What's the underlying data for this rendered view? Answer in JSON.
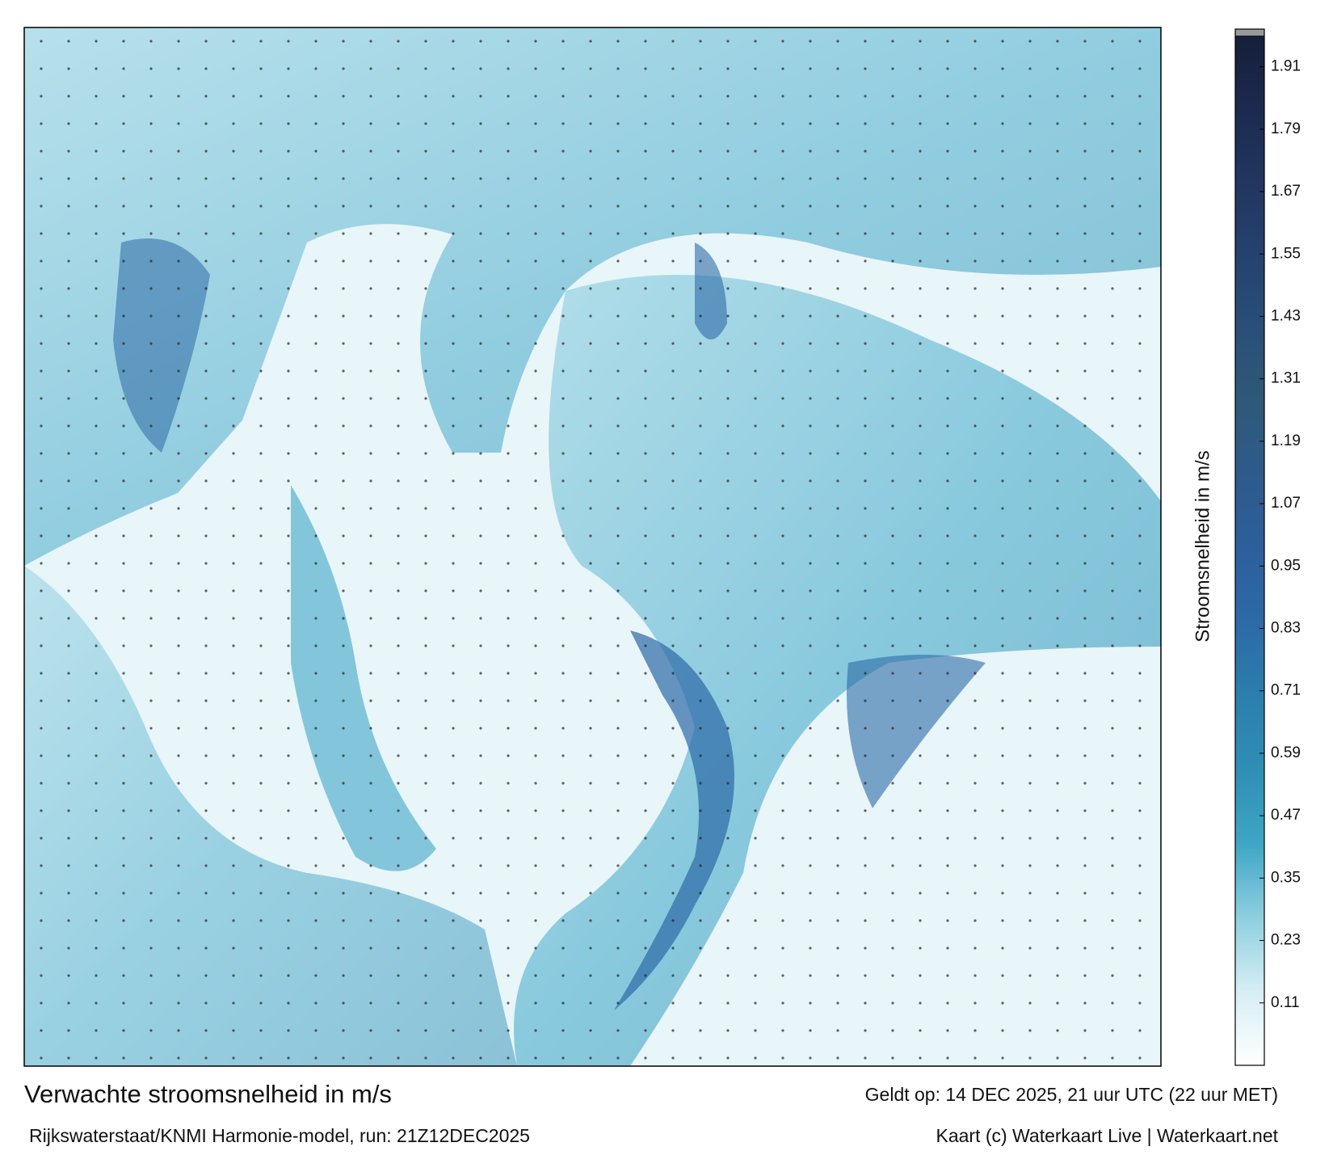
{
  "map": {
    "title": "Verwachte stroomsnelheid in m/s",
    "subtitle": "Rijkswaterstaat/KNMI Harmonie-model, run: 21Z12DEC2025",
    "valid": "Geldt op: 14 DEC 2025, 21 uur UTC (22 uur MET)",
    "credit": "Kaart (c) Waterkaart Live | Waterkaart.net",
    "colorbar": {
      "label": "Stroomsnelheid in m/s",
      "lim": [
        -0.01,
        1.97
      ],
      "ticks": [
        0.11,
        0.23,
        0.35,
        0.47,
        0.59,
        0.71,
        0.83,
        0.95,
        1.07,
        1.19,
        1.31,
        1.43,
        1.55,
        1.67,
        1.79,
        1.91
      ],
      "colormap": [
        "#ffffff",
        "#d6eef5",
        "#8fcfe0",
        "#3fa6c6",
        "#2f8fb5",
        "#2c7fad",
        "#2d6aa6",
        "#2d5f9c",
        "#2e5a8c",
        "#2d5a78",
        "#2a4f78",
        "#25426f",
        "#22365f",
        "#1c2a4f",
        "#161f3a"
      ],
      "over_color": "#999999"
    }
  }
}
